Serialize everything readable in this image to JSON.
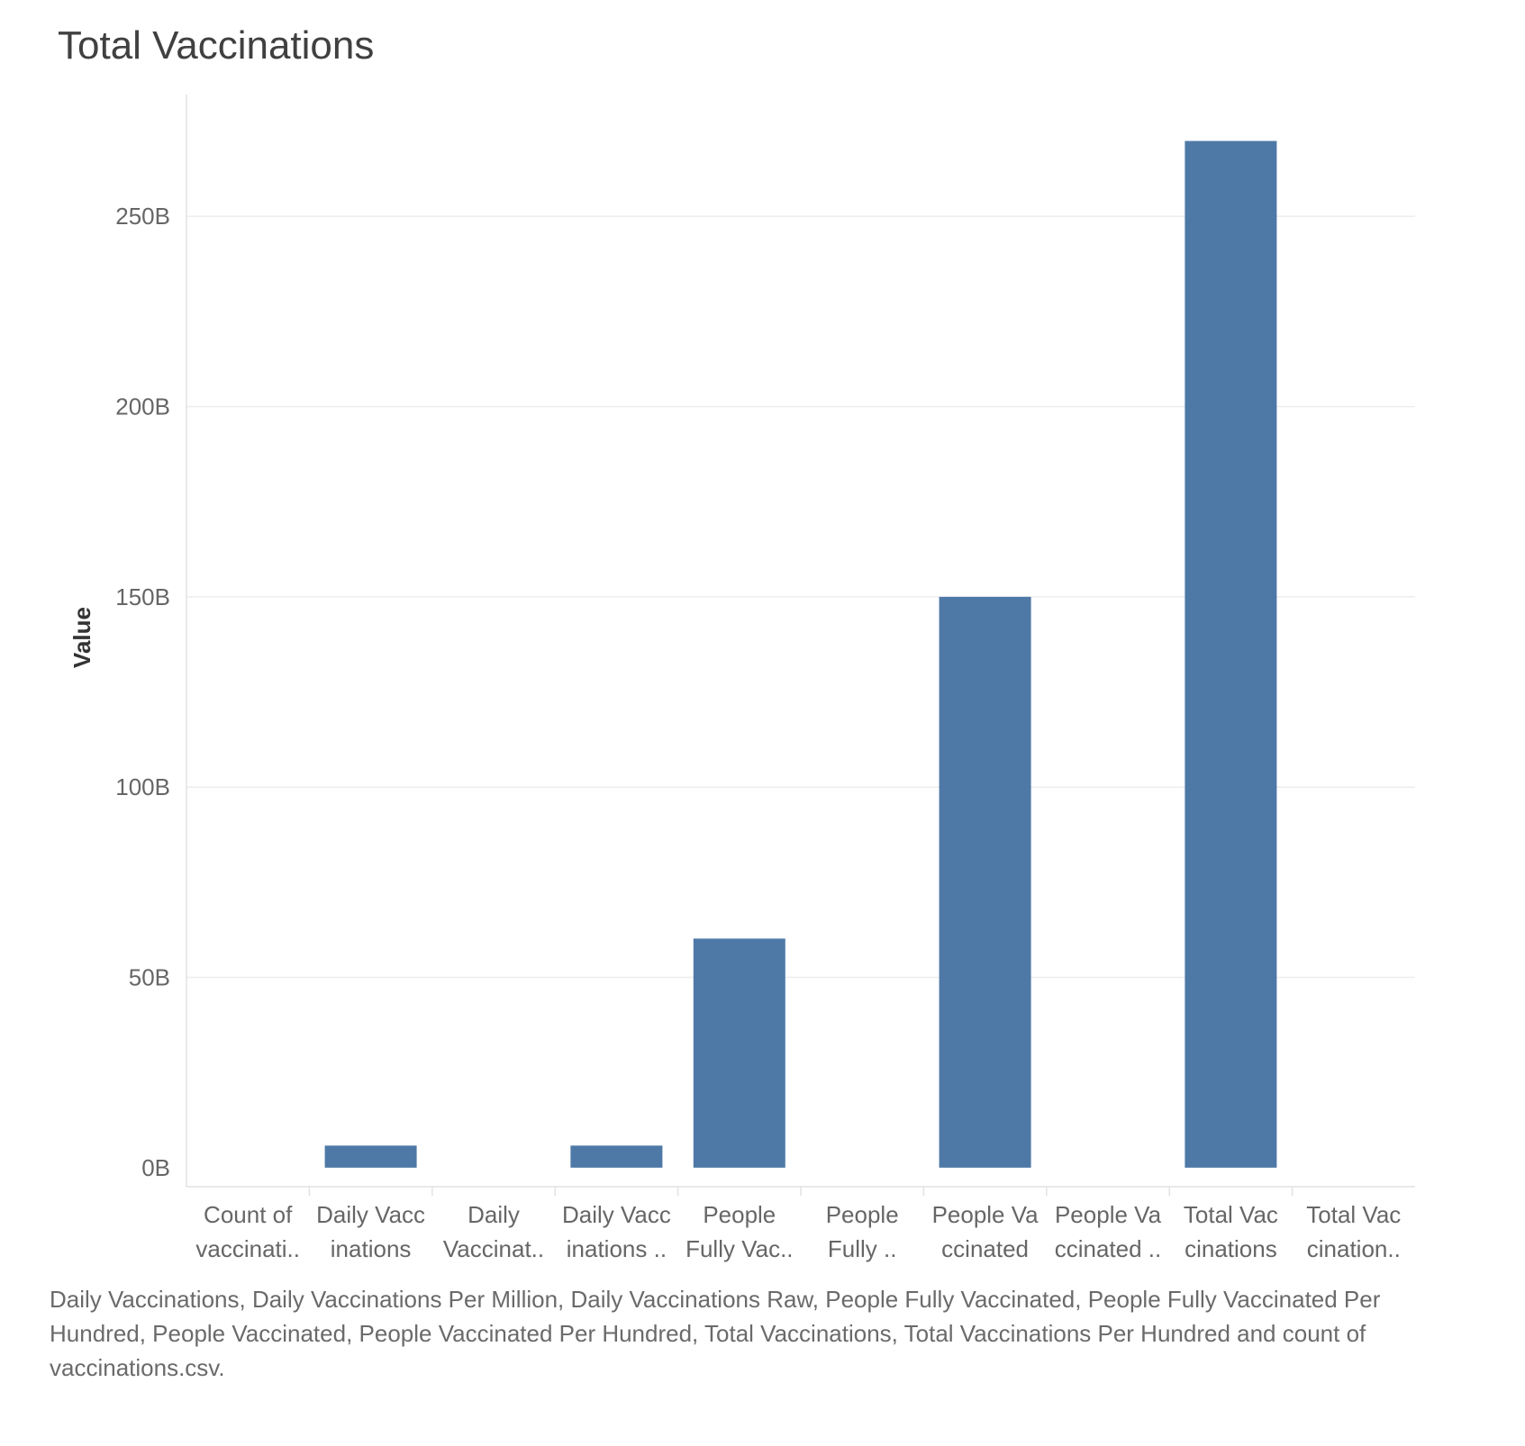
{
  "chart_data": {
    "type": "bar",
    "title": "Total Vaccinations",
    "ylabel": "Value",
    "xlabel": "",
    "ylim": [
      -5,
      282
    ],
    "yticks": [
      0,
      50,
      100,
      150,
      200,
      250
    ],
    "ytick_labels": [
      "0B",
      "50B",
      "100B",
      "150B",
      "200B",
      "250B"
    ],
    "categories": [
      [
        "Count of",
        "vaccinati.."
      ],
      [
        "Daily Vacc",
        "inations"
      ],
      [
        "Daily",
        "Vaccinat.."
      ],
      [
        "Daily Vacc",
        "inations .."
      ],
      [
        "People",
        "Fully Vac.."
      ],
      [
        "People",
        "Fully .."
      ],
      [
        "People Va",
        "ccinated"
      ],
      [
        "People Va",
        "ccinated .."
      ],
      [
        "Total Vac",
        "cinations"
      ],
      [
        "Total Vac",
        "cination.."
      ]
    ],
    "values": [
      0.0,
      5.8,
      0.0,
      5.8,
      60.2,
      0.0,
      150.0,
      0.0,
      269.8,
      0.0
    ],
    "grid": true,
    "bar_color": "#4e79a7"
  },
  "caption": "Daily Vaccinations, Daily Vaccinations Per Million, Daily Vaccinations Raw, People Fully Vaccinated, People Fully Vaccinated Per Hundred, People Vaccinated, People Vaccinated Per Hundred, Total Vaccinations, Total Vaccinations Per Hundred and count of vaccinations.csv."
}
